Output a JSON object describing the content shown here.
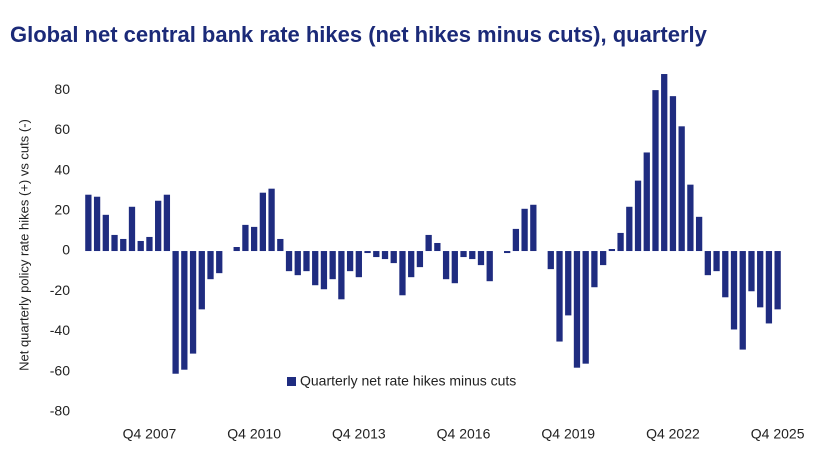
{
  "chart_data": {
    "type": "bar",
    "title": "Global net central bank rate hikes (net hikes minus cuts), quarterly",
    "y_label": "Net quarterly policy rate hikes (+) vs cuts (-)",
    "categories": [
      null,
      null,
      null,
      null,
      null,
      null,
      null,
      "Q4 2007",
      null,
      null,
      null,
      null,
      null,
      null,
      null,
      null,
      null,
      null,
      null,
      "Q4 2010",
      null,
      null,
      null,
      null,
      null,
      null,
      null,
      null,
      null,
      null,
      null,
      "Q4 2013",
      null,
      null,
      null,
      null,
      null,
      null,
      null,
      null,
      null,
      null,
      null,
      "Q4 2016",
      null,
      null,
      null,
      null,
      null,
      null,
      null,
      null,
      null,
      null,
      null,
      "Q4 2019",
      null,
      null,
      null,
      null,
      null,
      null,
      null,
      null,
      null,
      null,
      null,
      "Q4 2022",
      null,
      null,
      null,
      null,
      null,
      null,
      null,
      null,
      null,
      null,
      null,
      "Q4 2025"
    ],
    "series": [
      {
        "name": "Quarterly net rate hikes minus cuts",
        "color": "#1f2c80",
        "values": [
          28,
          27,
          18,
          8,
          6,
          22,
          5,
          7,
          25,
          28,
          -61,
          -59,
          -51,
          -29,
          -14,
          -11,
          0,
          2,
          13,
          12,
          29,
          31,
          6,
          -10,
          -12,
          -10,
          -17,
          -19,
          -14,
          -24,
          -10,
          -13,
          -1,
          -3,
          -4,
          -6,
          -22,
          -13,
          -8,
          8,
          4,
          -14,
          -16,
          -3,
          -4,
          -7,
          -15,
          0,
          -1,
          11,
          21,
          23,
          0,
          -9,
          -45,
          -32,
          -58,
          -56,
          -18,
          -7,
          1,
          9,
          22,
          35,
          49,
          80,
          88,
          77,
          62,
          33,
          17,
          -12,
          -10,
          -23,
          -39,
          -49,
          -20,
          -28,
          -36,
          -29
        ]
      }
    ],
    "ylim": [
      -85,
      90
    ],
    "yticks": [
      -80,
      -60,
      -40,
      -20,
      0,
      20,
      40,
      60,
      80
    ],
    "grid": false
  }
}
